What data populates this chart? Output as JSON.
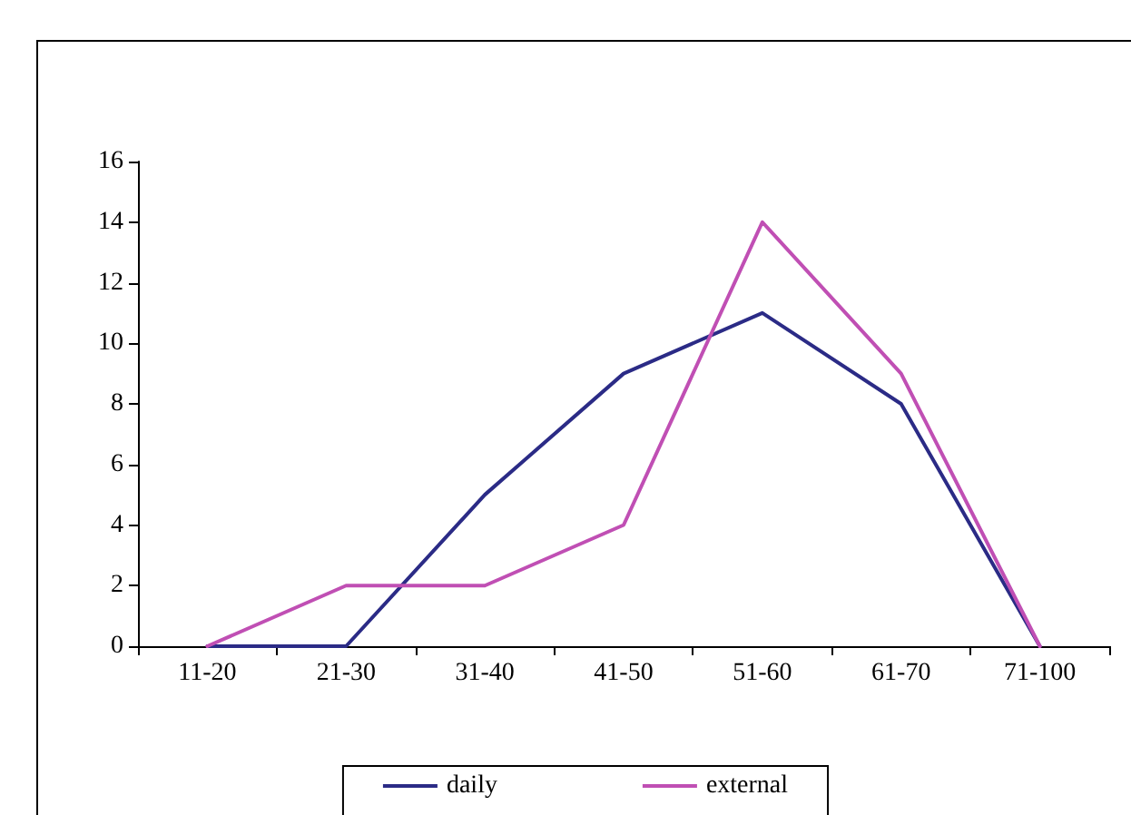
{
  "chart_data": {
    "type": "line",
    "categories": [
      "11-20",
      "21-30",
      "31-40",
      "41-50",
      "51-60",
      "61-70",
      "71-100"
    ],
    "series": [
      {
        "name": "daily",
        "color": "#2b2b86",
        "values": [
          0,
          0,
          5,
          9,
          11,
          8,
          0
        ]
      },
      {
        "name": "external",
        "color": "#c04fb4",
        "values": [
          0,
          2,
          2,
          4,
          14,
          9,
          0
        ]
      }
    ],
    "ylim": [
      0,
      16
    ],
    "yticks": [
      0,
      2,
      4,
      6,
      8,
      10,
      12,
      14,
      16
    ],
    "grid": false,
    "legend": "bottom",
    "marker": "none",
    "line_style": "solid"
  }
}
